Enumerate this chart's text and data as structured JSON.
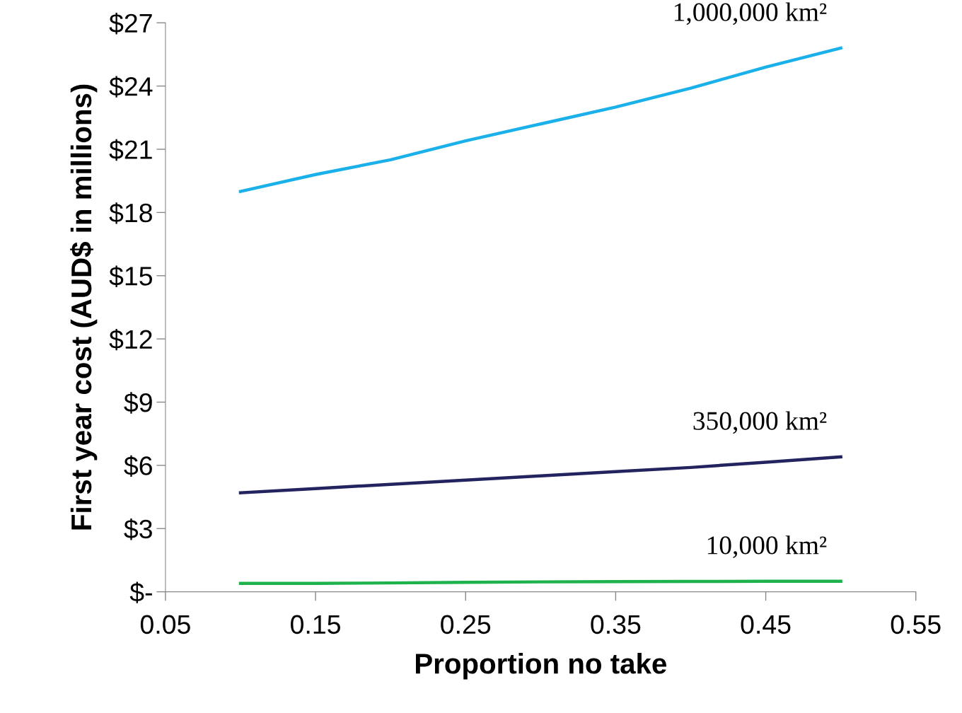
{
  "chart_data": {
    "type": "line",
    "xlabel": "Proportion no take",
    "ylabel": "First year cost (AUD$ in millions)",
    "x": [
      0.1,
      0.15,
      0.2,
      0.25,
      0.3,
      0.35,
      0.4,
      0.45,
      0.5
    ],
    "series": [
      {
        "name": "1,000,000 km²",
        "color": "#1ab0ea",
        "values": [
          19.0,
          19.8,
          20.5,
          21.4,
          22.2,
          23.0,
          23.9,
          24.9,
          25.8
        ]
      },
      {
        "name": "350,000 km²",
        "color": "#232360",
        "values": [
          4.7,
          4.9,
          5.1,
          5.3,
          5.5,
          5.7,
          5.9,
          6.15,
          6.4
        ]
      },
      {
        "name": "10,000 km²",
        "color": "#1db24b",
        "values": [
          0.4,
          0.4,
          0.42,
          0.45,
          0.47,
          0.48,
          0.49,
          0.5,
          0.5
        ]
      }
    ],
    "xlim": [
      0.05,
      0.55
    ],
    "xticks": [
      0.05,
      0.15,
      0.25,
      0.35,
      0.45,
      0.55
    ],
    "ylim": [
      0,
      27
    ],
    "yticks": [
      {
        "value": 0,
        "label": "$-"
      },
      {
        "value": 3,
        "label": "$3"
      },
      {
        "value": 6,
        "label": "$6"
      },
      {
        "value": 9,
        "label": "$9"
      },
      {
        "value": 12,
        "label": "$12"
      },
      {
        "value": 15,
        "label": "$15"
      },
      {
        "value": 18,
        "label": "$18"
      },
      {
        "value": 21,
        "label": "$21"
      },
      {
        "value": 24,
        "label": "$24"
      },
      {
        "value": 27,
        "label": "$27"
      }
    ],
    "grid": false,
    "legend": false,
    "marker": "none",
    "line_style": "solid"
  }
}
